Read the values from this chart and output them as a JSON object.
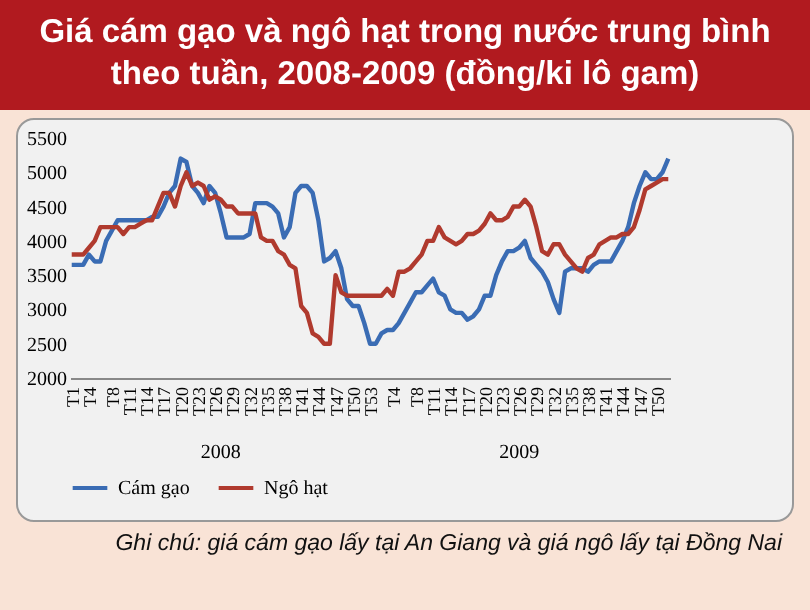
{
  "chart_data": {
    "type": "line",
    "title": "Giá cám gạo và ngô hạt trong nước trung bình theo tuần, 2008-2009 (đồng/ki lô gam)",
    "categories": [
      "T1",
      null,
      null,
      "T4",
      null,
      null,
      null,
      "T8",
      null,
      null,
      "T11",
      null,
      null,
      "T14",
      null,
      null,
      "T17",
      null,
      null,
      "T20",
      null,
      null,
      "T23",
      null,
      null,
      "T26",
      null,
      null,
      "T29",
      null,
      null,
      "T32",
      null,
      null,
      "T35",
      null,
      null,
      "T38",
      null,
      null,
      "T41",
      null,
      null,
      "T44",
      null,
      null,
      "T47",
      null,
      null,
      "T50",
      null,
      null,
      "T53",
      null,
      null,
      null,
      "T4",
      null,
      null,
      null,
      "T8",
      null,
      null,
      "T11",
      null,
      null,
      "T14",
      null,
      null,
      "T17",
      null,
      null,
      "T20",
      null,
      null,
      "T23",
      null,
      null,
      "T26",
      null,
      null,
      "T29",
      null,
      null,
      "T32",
      null,
      null,
      "T35",
      null,
      null,
      "T38",
      null,
      null,
      "T41",
      null,
      null,
      "T44",
      null,
      null,
      "T47",
      null,
      null,
      "T50",
      null,
      null
    ],
    "series": [
      {
        "name": "Cám gạo",
        "color": "#3a6cb4",
        "values": [
          3650,
          3650,
          3650,
          3800,
          3700,
          3700,
          4000,
          4150,
          4300,
          4300,
          4300,
          4300,
          4300,
          4300,
          4350,
          4350,
          4500,
          4700,
          4800,
          5200,
          5150,
          4800,
          4700,
          4550,
          4800,
          4700,
          4400,
          4050,
          4050,
          4050,
          4050,
          4100,
          4550,
          4550,
          4550,
          4500,
          4400,
          4050,
          4200,
          4700,
          4800,
          4800,
          4700,
          4300,
          3700,
          3750,
          3850,
          3600,
          3150,
          3050,
          3050,
          2800,
          2500,
          2500,
          2650,
          2700,
          2700,
          2800,
          2950,
          3100,
          3250,
          3250,
          3350,
          3450,
          3250,
          3200,
          3000,
          2950,
          2950,
          2850,
          2900,
          3000,
          3200,
          3200,
          3500,
          3700,
          3850,
          3850,
          3900,
          4000,
          3750,
          3650,
          3550,
          3400,
          3150,
          2950,
          3550,
          3600,
          3600,
          3600,
          3550,
          3650,
          3700,
          3700,
          3700,
          3850,
          4000,
          4200,
          4550,
          4800,
          5000,
          4900,
          4900,
          5000,
          5200
        ]
      },
      {
        "name": "Ngô hạt",
        "color": "#b03a2e",
        "values": [
          3800,
          3800,
          3800,
          3900,
          4000,
          4200,
          4200,
          4200,
          4200,
          4100,
          4200,
          4200,
          4250,
          4300,
          4300,
          4500,
          4700,
          4700,
          4500,
          4800,
          5000,
          4800,
          4850,
          4800,
          4600,
          4650,
          4600,
          4500,
          4500,
          4400,
          4400,
          4400,
          4400,
          4050,
          4000,
          4000,
          3850,
          3800,
          3650,
          3600,
          3050,
          2950,
          2650,
          2600,
          2500,
          2500,
          3500,
          3250,
          3200,
          3200,
          3200,
          3200,
          3200,
          3200,
          3200,
          3300,
          3200,
          3550,
          3550,
          3600,
          3700,
          3800,
          4000,
          4000,
          4200,
          4050,
          4000,
          3950,
          4000,
          4100,
          4100,
          4150,
          4250,
          4400,
          4300,
          4300,
          4350,
          4500,
          4500,
          4600,
          4500,
          4200,
          3850,
          3800,
          3950,
          3950,
          3800,
          3700,
          3600,
          3550,
          3750,
          3800,
          3950,
          4000,
          4050,
          4050,
          4100,
          4100,
          4200,
          4450,
          4750,
          4800,
          4850,
          4900,
          4900
        ]
      }
    ],
    "ylim": [
      2000,
      5500
    ],
    "yticks": [
      2000,
      2500,
      3000,
      3500,
      4000,
      4500,
      5000,
      5500
    ],
    "legend": "bottom",
    "grid": false,
    "annotations": [
      "2008",
      "2009",
      "Ghi chú: giá cám gạo lấy tại An Giang và giá ngô lấy tại Đồng Nai"
    ]
  }
}
